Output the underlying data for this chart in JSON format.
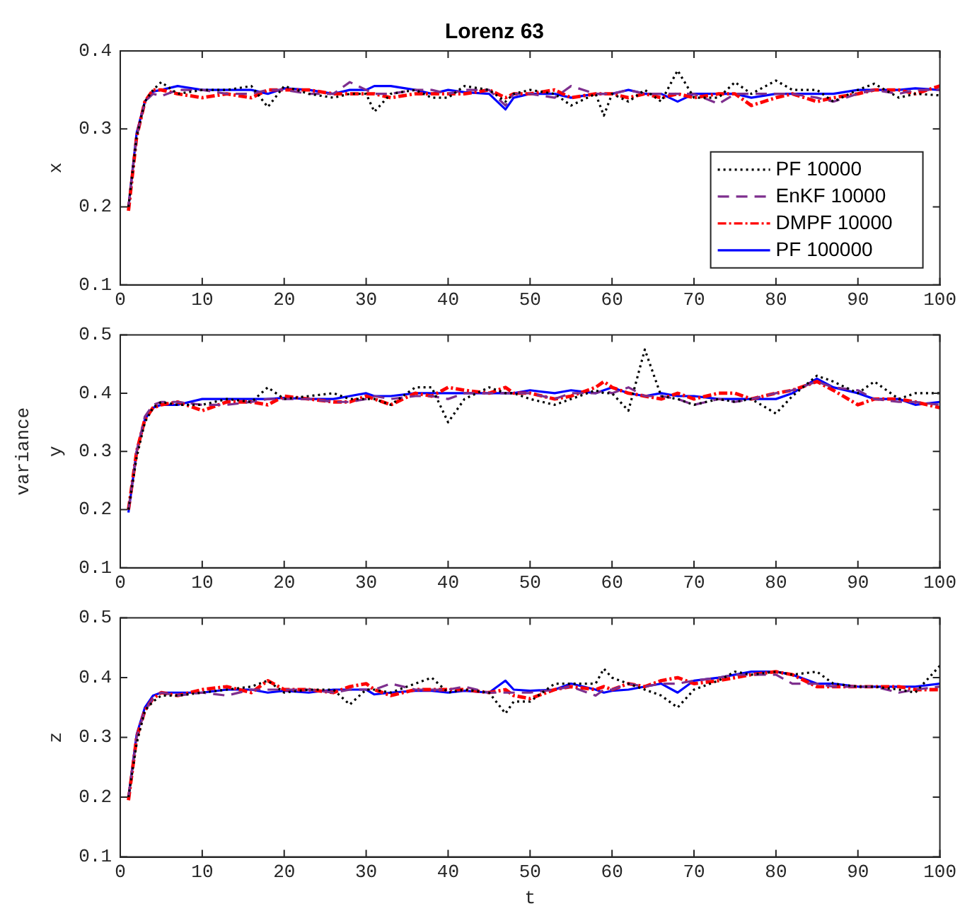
{
  "chart_data": [
    {
      "type": "line",
      "title": "Lorenz 63",
      "ylabel": "x",
      "x": [
        1,
        2,
        3,
        4,
        5,
        7,
        10,
        13,
        16,
        18,
        20,
        23,
        26,
        28,
        30,
        31,
        33,
        36,
        38,
        40,
        42,
        45,
        47,
        48,
        50,
        53,
        55,
        58,
        59,
        60,
        62,
        64,
        66,
        68,
        70,
        73,
        75,
        77,
        80,
        82,
        85,
        87,
        90,
        92,
        95,
        97,
        100
      ],
      "xlim": [
        0,
        100
      ],
      "xticks": [
        0,
        10,
        20,
        30,
        40,
        50,
        60,
        70,
        80,
        90,
        100
      ],
      "ylim": [
        0.1,
        0.4
      ],
      "yticks": [
        0.1,
        0.2,
        0.3,
        0.4
      ],
      "grid": false,
      "legend": "bottom right",
      "series": [
        {
          "name": "PF 10000",
          "color": "#000000",
          "line_style": "dotted",
          "values": [
            0.2,
            0.29,
            0.335,
            0.35,
            0.36,
            0.345,
            0.35,
            0.35,
            0.355,
            0.328,
            0.355,
            0.345,
            0.34,
            0.345,
            0.345,
            0.322,
            0.345,
            0.35,
            0.34,
            0.34,
            0.355,
            0.35,
            0.335,
            0.345,
            0.35,
            0.345,
            0.33,
            0.345,
            0.317,
            0.345,
            0.335,
            0.35,
            0.335,
            0.375,
            0.34,
            0.34,
            0.36,
            0.345,
            0.362,
            0.35,
            0.35,
            0.335,
            0.35,
            0.358,
            0.34,
            0.345,
            0.343
          ]
        },
        {
          "name": "EnKF 10000",
          "color": "#7e2f8e",
          "line_style": "dashed",
          "values": [
            0.2,
            0.29,
            0.335,
            0.345,
            0.342,
            0.35,
            0.35,
            0.345,
            0.345,
            0.35,
            0.35,
            0.345,
            0.345,
            0.36,
            0.35,
            0.345,
            0.345,
            0.35,
            0.35,
            0.345,
            0.35,
            0.35,
            0.33,
            0.345,
            0.345,
            0.34,
            0.355,
            0.345,
            0.345,
            0.345,
            0.35,
            0.345,
            0.345,
            0.345,
            0.345,
            0.332,
            0.345,
            0.345,
            0.345,
            0.345,
            0.34,
            0.335,
            0.345,
            0.35,
            0.345,
            0.35,
            0.35
          ]
        },
        {
          "name": "DMPF 10000",
          "color": "#ff0000",
          "line_style": "dashdot",
          "values": [
            0.195,
            0.29,
            0.335,
            0.35,
            0.35,
            0.345,
            0.34,
            0.345,
            0.34,
            0.35,
            0.35,
            0.35,
            0.345,
            0.345,
            0.345,
            0.345,
            0.34,
            0.345,
            0.345,
            0.345,
            0.345,
            0.35,
            0.34,
            0.345,
            0.345,
            0.35,
            0.34,
            0.345,
            0.345,
            0.345,
            0.34,
            0.345,
            0.34,
            0.345,
            0.34,
            0.345,
            0.345,
            0.33,
            0.34,
            0.345,
            0.335,
            0.34,
            0.345,
            0.35,
            0.35,
            0.345,
            0.355
          ]
        },
        {
          "name": "PF 100000",
          "color": "#0000ff",
          "line_style": "solid",
          "values": [
            0.2,
            0.295,
            0.335,
            0.348,
            0.35,
            0.355,
            0.35,
            0.35,
            0.35,
            0.345,
            0.352,
            0.35,
            0.345,
            0.35,
            0.35,
            0.355,
            0.355,
            0.35,
            0.345,
            0.35,
            0.347,
            0.345,
            0.325,
            0.34,
            0.345,
            0.345,
            0.34,
            0.345,
            0.345,
            0.345,
            0.35,
            0.345,
            0.345,
            0.335,
            0.345,
            0.345,
            0.345,
            0.34,
            0.345,
            0.345,
            0.345,
            0.345,
            0.35,
            0.35,
            0.35,
            0.352,
            0.35
          ]
        }
      ]
    },
    {
      "type": "line",
      "ylabel": "y",
      "annotations": [
        "variance"
      ],
      "x": [
        1,
        2,
        3,
        4,
        5,
        7,
        10,
        13,
        16,
        18,
        20,
        23,
        26,
        28,
        30,
        31,
        33,
        36,
        38,
        40,
        42,
        45,
        47,
        48,
        50,
        53,
        55,
        58,
        59,
        60,
        62,
        64,
        66,
        68,
        70,
        73,
        75,
        77,
        80,
        82,
        85,
        87,
        90,
        92,
        95,
        97,
        100
      ],
      "xlim": [
        0,
        100
      ],
      "xticks": [
        0,
        10,
        20,
        30,
        40,
        50,
        60,
        70,
        80,
        90,
        100
      ],
      "ylim": [
        0.1,
        0.5
      ],
      "yticks": [
        0.1,
        0.2,
        0.3,
        0.4,
        0.5
      ],
      "grid": false,
      "series": [
        {
          "color": "#000000",
          "line_style": "dotted",
          "values": [
            0.2,
            0.29,
            0.35,
            0.375,
            0.385,
            0.38,
            0.38,
            0.39,
            0.385,
            0.41,
            0.39,
            0.395,
            0.4,
            0.39,
            0.39,
            0.39,
            0.38,
            0.41,
            0.41,
            0.35,
            0.39,
            0.41,
            0.4,
            0.4,
            0.39,
            0.38,
            0.39,
            0.405,
            0.4,
            0.4,
            0.37,
            0.475,
            0.395,
            0.39,
            0.38,
            0.39,
            0.385,
            0.39,
            0.365,
            0.395,
            0.43,
            0.42,
            0.4,
            0.42,
            0.39,
            0.4,
            0.4
          ]
        },
        {
          "color": "#7e2f8e",
          "line_style": "dashed",
          "values": [
            0.2,
            0.3,
            0.36,
            0.38,
            0.385,
            0.385,
            0.38,
            0.38,
            0.385,
            0.39,
            0.39,
            0.39,
            0.385,
            0.385,
            0.39,
            0.395,
            0.39,
            0.395,
            0.395,
            0.39,
            0.4,
            0.4,
            0.4,
            0.4,
            0.4,
            0.39,
            0.4,
            0.4,
            0.405,
            0.4,
            0.41,
            0.395,
            0.395,
            0.39,
            0.38,
            0.39,
            0.385,
            0.39,
            0.4,
            0.405,
            0.42,
            0.41,
            0.405,
            0.39,
            0.385,
            0.385,
            0.38
          ]
        },
        {
          "color": "#ff0000",
          "line_style": "dashdot",
          "values": [
            0.2,
            0.3,
            0.355,
            0.375,
            0.38,
            0.385,
            0.37,
            0.385,
            0.385,
            0.38,
            0.395,
            0.39,
            0.385,
            0.385,
            0.395,
            0.39,
            0.38,
            0.4,
            0.395,
            0.41,
            0.405,
            0.4,
            0.41,
            0.4,
            0.4,
            0.39,
            0.395,
            0.41,
            0.42,
            0.41,
            0.4,
            0.395,
            0.39,
            0.4,
            0.39,
            0.4,
            0.4,
            0.39,
            0.4,
            0.405,
            0.42,
            0.405,
            0.38,
            0.39,
            0.39,
            0.385,
            0.375
          ]
        },
        {
          "color": "#0000ff",
          "line_style": "solid",
          "values": [
            0.195,
            0.3,
            0.355,
            0.375,
            0.38,
            0.38,
            0.39,
            0.39,
            0.39,
            0.39,
            0.392,
            0.39,
            0.39,
            0.395,
            0.4,
            0.395,
            0.395,
            0.4,
            0.4,
            0.4,
            0.4,
            0.4,
            0.4,
            0.4,
            0.405,
            0.4,
            0.405,
            0.4,
            0.405,
            0.41,
            0.4,
            0.395,
            0.4,
            0.395,
            0.395,
            0.39,
            0.39,
            0.39,
            0.39,
            0.4,
            0.425,
            0.41,
            0.4,
            0.39,
            0.39,
            0.38,
            0.385
          ]
        }
      ]
    },
    {
      "type": "line",
      "ylabel": "z",
      "xlabel": "t",
      "x": [
        1,
        2,
        3,
        4,
        5,
        7,
        10,
        13,
        16,
        18,
        20,
        23,
        26,
        28,
        30,
        31,
        33,
        36,
        38,
        40,
        42,
        45,
        47,
        48,
        50,
        53,
        55,
        58,
        59,
        60,
        62,
        64,
        66,
        68,
        70,
        73,
        75,
        77,
        80,
        82,
        85,
        87,
        90,
        92,
        95,
        97,
        100
      ],
      "xlim": [
        0,
        100
      ],
      "xticks": [
        0,
        10,
        20,
        30,
        40,
        50,
        60,
        70,
        80,
        90,
        100
      ],
      "ylim": [
        0.1,
        0.5
      ],
      "yticks": [
        0.1,
        0.2,
        0.3,
        0.4,
        0.5
      ],
      "grid": false,
      "series": [
        {
          "color": "#000000",
          "line_style": "dotted",
          "values": [
            0.2,
            0.29,
            0.345,
            0.36,
            0.37,
            0.37,
            0.375,
            0.38,
            0.385,
            0.395,
            0.375,
            0.38,
            0.38,
            0.355,
            0.38,
            0.38,
            0.375,
            0.39,
            0.4,
            0.375,
            0.38,
            0.375,
            0.34,
            0.36,
            0.36,
            0.39,
            0.39,
            0.39,
            0.415,
            0.4,
            0.39,
            0.38,
            0.37,
            0.35,
            0.38,
            0.395,
            0.41,
            0.405,
            0.41,
            0.405,
            0.41,
            0.39,
            0.385,
            0.385,
            0.38,
            0.375,
            0.42
          ]
        },
        {
          "color": "#7e2f8e",
          "line_style": "dashed",
          "values": [
            0.2,
            0.3,
            0.345,
            0.365,
            0.375,
            0.37,
            0.375,
            0.37,
            0.38,
            0.38,
            0.38,
            0.38,
            0.375,
            0.38,
            0.38,
            0.38,
            0.39,
            0.38,
            0.38,
            0.38,
            0.385,
            0.375,
            0.375,
            0.375,
            0.375,
            0.38,
            0.385,
            0.37,
            0.38,
            0.38,
            0.39,
            0.385,
            0.39,
            0.39,
            0.395,
            0.4,
            0.405,
            0.405,
            0.405,
            0.39,
            0.39,
            0.385,
            0.385,
            0.385,
            0.375,
            0.38,
            0.385
          ]
        },
        {
          "color": "#ff0000",
          "line_style": "dashdot",
          "values": [
            0.195,
            0.3,
            0.345,
            0.365,
            0.375,
            0.37,
            0.38,
            0.385,
            0.375,
            0.395,
            0.38,
            0.38,
            0.375,
            0.385,
            0.39,
            0.38,
            0.37,
            0.38,
            0.38,
            0.38,
            0.38,
            0.375,
            0.38,
            0.37,
            0.365,
            0.38,
            0.385,
            0.38,
            0.385,
            0.38,
            0.39,
            0.385,
            0.395,
            0.4,
            0.39,
            0.395,
            0.4,
            0.405,
            0.41,
            0.405,
            0.385,
            0.385,
            0.385,
            0.385,
            0.385,
            0.38,
            0.38
          ]
        },
        {
          "color": "#0000ff",
          "line_style": "solid",
          "values": [
            0.2,
            0.305,
            0.35,
            0.37,
            0.375,
            0.375,
            0.375,
            0.38,
            0.38,
            0.375,
            0.378,
            0.375,
            0.38,
            0.38,
            0.38,
            0.372,
            0.375,
            0.378,
            0.378,
            0.375,
            0.378,
            0.375,
            0.395,
            0.38,
            0.378,
            0.38,
            0.39,
            0.38,
            0.375,
            0.378,
            0.38,
            0.385,
            0.39,
            0.375,
            0.395,
            0.4,
            0.405,
            0.41,
            0.41,
            0.405,
            0.39,
            0.39,
            0.385,
            0.385,
            0.385,
            0.385,
            0.39
          ]
        }
      ]
    }
  ]
}
